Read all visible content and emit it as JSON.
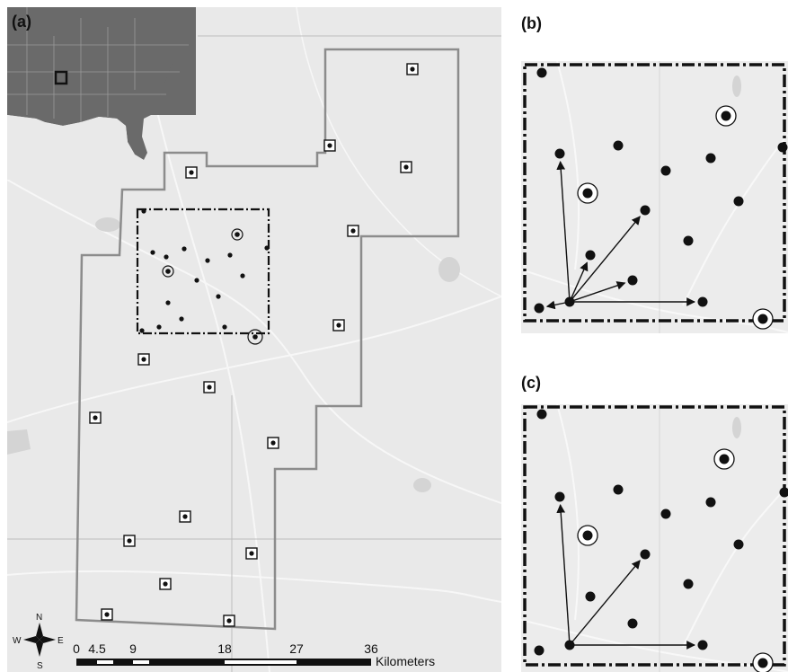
{
  "panels": {
    "a": {
      "label": "(a)"
    },
    "b": {
      "label": "(b)"
    },
    "c": {
      "label": "(c)"
    }
  },
  "compass": {
    "n": "N",
    "s": "S",
    "e": "E",
    "w": "W"
  },
  "scale_bar": {
    "ticks": [
      "0",
      "4.5",
      "9",
      "18",
      "27",
      "36"
    ],
    "unit": "Kilometers"
  },
  "colors": {
    "map_background": "#e8e8e8",
    "inset_land": "#6a6a6a",
    "inset_water": "#e8e8e8",
    "boundary": "#8c8c8c",
    "points": "#111111"
  }
}
